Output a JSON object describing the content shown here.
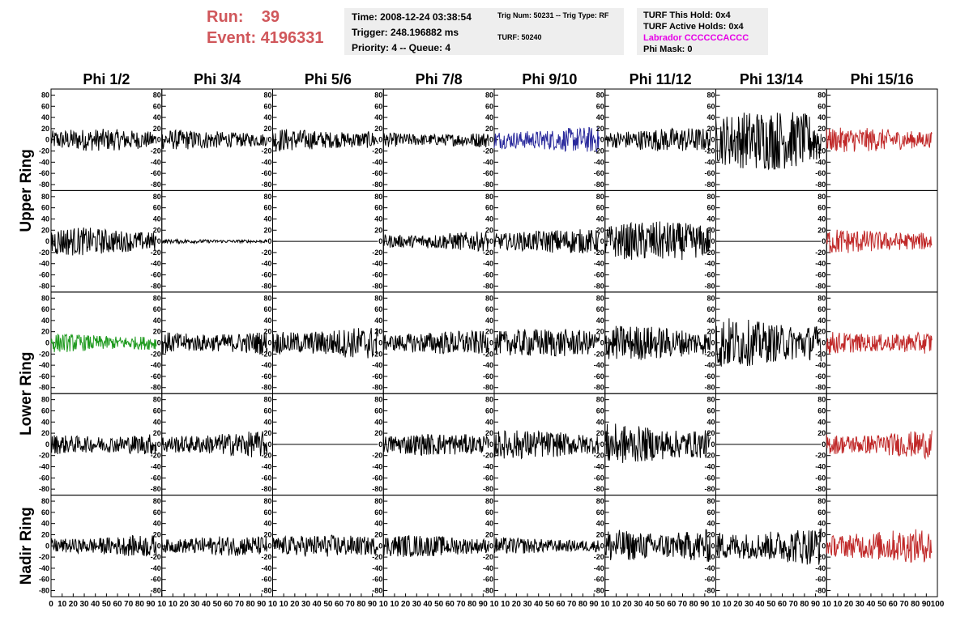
{
  "header": {
    "run_label": "Run:",
    "run_value": "39",
    "event_label": "Event:",
    "event_value": "4196331"
  },
  "info_box_1": {
    "time": "Time: 2008-12-24 03:38:54",
    "trigger": "Trigger: 248.196882 ms",
    "priority": "Priority: 4 -- Queue: 4"
  },
  "info_box_2": {
    "trig": "Trig Num: 50231 -- Trig Type: RF",
    "turf": "TURF: 50240"
  },
  "info_box_3": {
    "this_hold": "TURF This Hold: 0x4",
    "active_holds": "TURF Active Holds: 0x4",
    "labrador": "Labrador CCCCCCACCC",
    "phi_mask": "Phi Mask: 0"
  },
  "colors": {
    "header_red": "#d0575b",
    "blue_trace": "#2a2a9c",
    "green_trace": "#1e9a1e",
    "red_trace": "#c02828",
    "black_trace": "#000000",
    "info_bg": "#eeeeee",
    "magenta": "#e600e6"
  },
  "chart_data": {
    "type": "line",
    "columns": [
      "Phi 1/2",
      "Phi 3/4",
      "Phi 5/6",
      "Phi 7/8",
      "Phi 9/10",
      "Phi 11/12",
      "Phi 13/14",
      "Phi 15/16"
    ],
    "row_groups": [
      {
        "label": "Upper Ring",
        "rows": [
          0,
          1
        ]
      },
      {
        "label": "Lower Ring",
        "rows": [
          2,
          3
        ]
      },
      {
        "label": "Nadir Ring",
        "rows": [
          4
        ]
      }
    ],
    "ylim": [
      -85,
      85
    ],
    "y_ticks": [
      80,
      60,
      40,
      20,
      0,
      -20,
      -40,
      -60,
      -80
    ],
    "y_tick_labels": [
      "80",
      "60",
      "40",
      "20",
      "0",
      "-20",
      "-40",
      "-60",
      "-80"
    ],
    "xlim": [
      0,
      100
    ],
    "x_tick_labels": [
      "0",
      "10",
      "20",
      "30",
      "40",
      "50",
      "60",
      "70",
      "80",
      "90",
      "100"
    ],
    "x_tick_labels_inner": [
      "10",
      "20",
      "30",
      "40",
      "50",
      "60",
      "70",
      "80",
      "90"
    ],
    "trace_length": 95,
    "rows": [
      [
        {
          "color": "black",
          "amp": 20
        },
        {
          "color": "black",
          "amp": 18
        },
        {
          "color": "black",
          "amp": 22
        },
        {
          "color": "black",
          "amp": 16
        },
        {
          "color": "blue",
          "amp": 24
        },
        {
          "color": "black",
          "amp": 22
        },
        {
          "color": "black",
          "amp": 55
        },
        {
          "color": "red",
          "amp": 22
        }
      ],
      [
        {
          "color": "black",
          "amp": 26
        },
        {
          "color": "black",
          "amp": 4
        },
        {
          "color": "black",
          "amp": 0
        },
        {
          "color": "black",
          "amp": 18
        },
        {
          "color": "black",
          "amp": 22
        },
        {
          "color": "black",
          "amp": 36
        },
        {
          "color": "black",
          "amp": 0
        },
        {
          "color": "red",
          "amp": 24
        }
      ],
      [
        {
          "color": "green",
          "amp": 18
        },
        {
          "color": "black",
          "amp": 24
        },
        {
          "color": "black",
          "amp": 30
        },
        {
          "color": "black",
          "amp": 22
        },
        {
          "color": "black",
          "amp": 26
        },
        {
          "color": "black",
          "amp": 32
        },
        {
          "color": "black",
          "amp": 48
        },
        {
          "color": "red",
          "amp": 24
        }
      ],
      [
        {
          "color": "black",
          "amp": 22
        },
        {
          "color": "black",
          "amp": 24
        },
        {
          "color": "black",
          "amp": 0
        },
        {
          "color": "black",
          "amp": 20
        },
        {
          "color": "black",
          "amp": 26
        },
        {
          "color": "black",
          "amp": 38
        },
        {
          "color": "black",
          "amp": 0
        },
        {
          "color": "red",
          "amp": 26
        }
      ],
      [
        {
          "color": "black",
          "amp": 20
        },
        {
          "color": "black",
          "amp": 18
        },
        {
          "color": "black",
          "amp": 20
        },
        {
          "color": "black",
          "amp": 20
        },
        {
          "color": "black",
          "amp": 16
        },
        {
          "color": "black",
          "amp": 36
        },
        {
          "color": "black",
          "amp": 36
        },
        {
          "color": "red",
          "amp": 30
        }
      ]
    ]
  }
}
